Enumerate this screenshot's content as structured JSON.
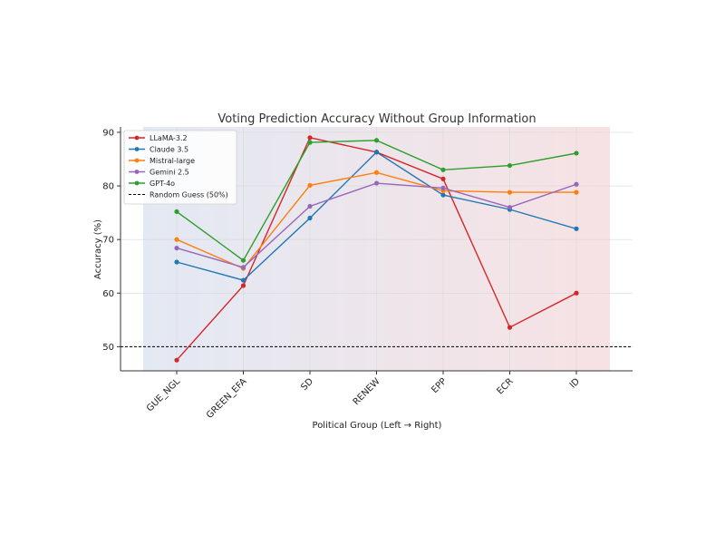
{
  "chart_data": {
    "type": "line",
    "title": "Voting Prediction Accuracy Without Group Information",
    "xlabel": "Political Group (Left → Right)",
    "ylabel": "Accuracy (%)",
    "categories": [
      "GUE_NGL",
      "GREEN_EFA",
      "SD",
      "RENEW",
      "EPP",
      "ECR",
      "ID"
    ],
    "ylim": [
      45.5,
      91
    ],
    "yticks": [
      50,
      60,
      70,
      80,
      90
    ],
    "grid": true,
    "legend_position": "top-left",
    "background_gradient": [
      "#e3e9f4",
      "#f7e2e3"
    ],
    "series": [
      {
        "name": "LLaMA-3.2",
        "color": "#d62728",
        "values": [
          47.5,
          61.4,
          89.0,
          86.3,
          81.3,
          53.6,
          60.0
        ]
      },
      {
        "name": "Claude 3.5",
        "color": "#1f77b4",
        "values": [
          65.8,
          62.4,
          74.0,
          86.3,
          78.3,
          75.6,
          72.0
        ]
      },
      {
        "name": "Mistral-large",
        "color": "#ff7f0e",
        "values": [
          70.0,
          64.6,
          80.1,
          82.5,
          79.1,
          78.8,
          78.8
        ]
      },
      {
        "name": "Gemini 2.5",
        "color": "#9467bd",
        "values": [
          68.4,
          64.8,
          76.2,
          80.5,
          79.6,
          76.0,
          80.3
        ]
      },
      {
        "name": "GPT-4o",
        "color": "#2ca02c",
        "values": [
          75.2,
          66.1,
          88.1,
          88.5,
          83.0,
          83.8,
          86.1
        ]
      }
    ],
    "reference_line": {
      "label": "Random Guess (50%)",
      "value": 50,
      "color": "#000000"
    }
  }
}
